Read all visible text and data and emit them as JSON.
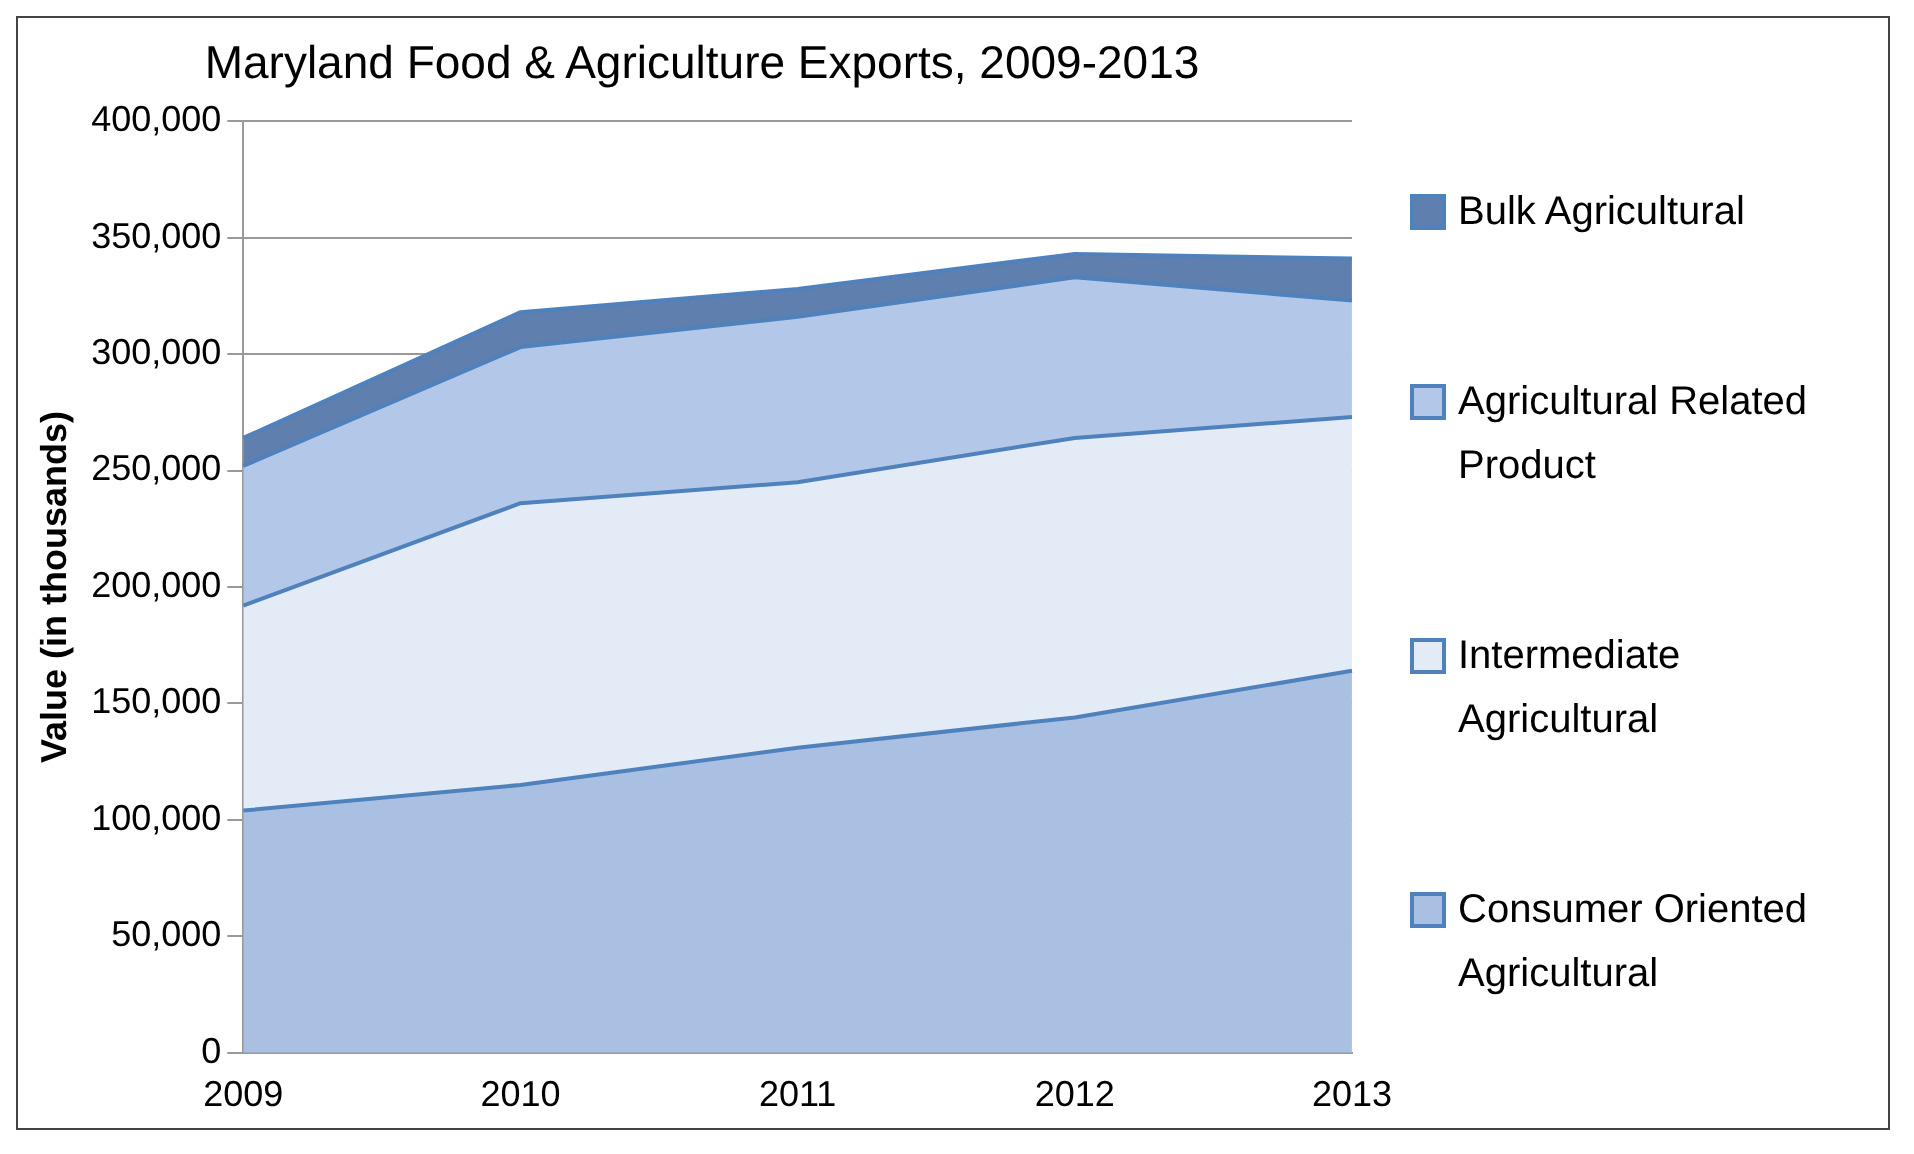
{
  "chart_data": {
    "type": "area",
    "title": "Maryland Food & Agriculture Exports, 2009-2013",
    "ylabel": "Value (in thousands)",
    "categories": [
      "2009",
      "2010",
      "2011",
      "2012",
      "2013"
    ],
    "stacked": true,
    "series": [
      {
        "name": "Consumer Oriented Agricultural",
        "color": "#a9c0e2",
        "values": [
          104000,
          115000,
          131000,
          144000,
          164000
        ]
      },
      {
        "name": "Intermediate Agricultural",
        "color": "#e3ebf7",
        "values": [
          88000,
          121000,
          114000,
          120000,
          109000
        ]
      },
      {
        "name": "Agricultural Related Product",
        "color": "#b3c8e8",
        "values": [
          60000,
          67000,
          71000,
          69000,
          50000
        ]
      },
      {
        "name": "Bulk Agricultural",
        "color": "#5f7fae",
        "values": [
          12000,
          15000,
          12000,
          10000,
          18000
        ]
      }
    ],
    "ylim": [
      0,
      400000
    ],
    "yticks": [
      {
        "value": 0,
        "label": "0"
      },
      {
        "value": 50000,
        "label": "50,000"
      },
      {
        "value": 100000,
        "label": "100,000"
      },
      {
        "value": 150000,
        "label": "150,000"
      },
      {
        "value": 200000,
        "label": "200,000"
      },
      {
        "value": 250000,
        "label": "250,000"
      },
      {
        "value": 300000,
        "label": "300,000"
      },
      {
        "value": 350000,
        "label": "350,000"
      },
      {
        "value": 400000,
        "label": "400,000"
      }
    ],
    "grid": "y",
    "legend": "right"
  }
}
